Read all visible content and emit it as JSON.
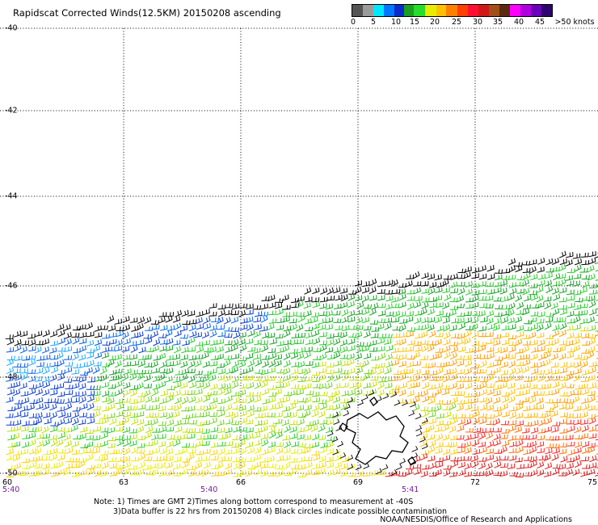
{
  "title": "Rapidscat Corrected Winds(12.5KM) 20150208 ascending",
  "legend": {
    "colors": [
      "#555555",
      "#9b9b9b",
      "#00e8ff",
      "#0077ff",
      "#0a2acc",
      "#1aa020",
      "#28dd2a",
      "#e8ec00",
      "#ffc000",
      "#ff8000",
      "#ff4000",
      "#ff1030",
      "#d01818",
      "#a05018",
      "#5a2a10",
      "#ff00ff",
      "#b000e0",
      "#6a00b8",
      "#2e0470"
    ],
    "labels": [
      "0",
      "5",
      "10",
      "15",
      "20",
      "25",
      "30",
      "35",
      "40",
      "45",
      ">50 knots"
    ]
  },
  "lat_labels": [
    "-40",
    "-42",
    "-44",
    "-46",
    "-48",
    "-50"
  ],
  "lon_labels": [
    "60",
    "63",
    "66",
    "69",
    "72",
    "75"
  ],
  "time_labels": [
    "5:40",
    "5:40",
    "5:41"
  ],
  "notes": {
    "line1": "Note: 1) Times are GMT 2)Times along bottom correspond to measurement at -40S",
    "line2": "3)Data buffer is 22 hrs from 20150208 4) Black circles indicate possible contamination"
  },
  "credit": "NOAA/NESDIS/Office of Research and Applications"
}
